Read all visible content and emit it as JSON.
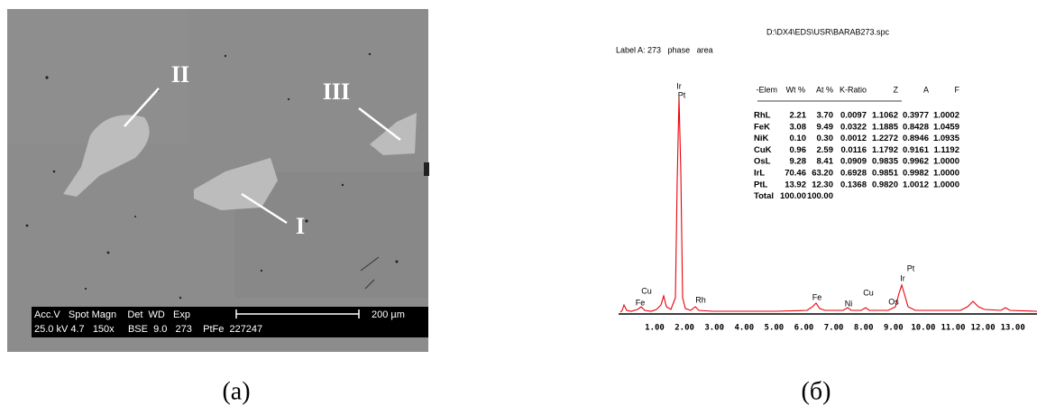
{
  "sem": {
    "labels": [
      "II",
      "III",
      "I"
    ],
    "info_header": "Acc.V   Spot Magn    Det  WD   Exp",
    "info_values": "25.0 kV 4.7   150x     BSE  9.0   273    PtFe  227247",
    "scale": "200 µm"
  },
  "spectrum": {
    "file": "D:\\DX4\\EDS\\USR\\BARAB273.spc",
    "label": "Label A: 273   phase   area",
    "table_header": [
      "-Elem",
      "Wt %",
      "At %",
      "K-Ratio",
      "Z",
      "A",
      "F"
    ],
    "table_rows": [
      [
        "RhL",
        "2.21",
        "3.70",
        "0.0097",
        "1.1062",
        "0.3977",
        "1.0002"
      ],
      [
        "FeK",
        "3.08",
        "9.49",
        "0.0322",
        "1.1885",
        "0.8428",
        "1.0459"
      ],
      [
        "NiK",
        "0.10",
        "0.30",
        "0.0012",
        "1.2272",
        "0.8946",
        "1.0935"
      ],
      [
        "CuK",
        "0.96",
        "2.59",
        "0.0116",
        "1.1792",
        "0.9161",
        "1.1192"
      ],
      [
        "OsL",
        "9.28",
        "8.41",
        "0.0909",
        "0.9835",
        "0.9962",
        "1.0000"
      ],
      [
        "IrL",
        "70.46",
        "63.20",
        "0.6928",
        "0.9851",
        "0.9982",
        "1.0000"
      ],
      [
        "PtL",
        "13.92",
        "12.30",
        "0.1368",
        "0.9820",
        "1.0012",
        "1.0000"
      ],
      [
        "Total",
        "100.00",
        "100.00"
      ]
    ],
    "peaks": [
      "Ir",
      "Pt",
      "Cu",
      "Fe",
      "Rh",
      "Fe",
      "Ni",
      "Cu",
      "Os",
      "Pt",
      "Ir"
    ],
    "xticks": [
      "1.00",
      "2.00",
      "3.00",
      "4.00",
      "5.00",
      "6.00",
      "7.00",
      "8.00",
      "9.00",
      "10.00",
      "11.00",
      "12.00",
      "13.00"
    ]
  },
  "captions": [
    "(а)",
    "(б)"
  ]
}
